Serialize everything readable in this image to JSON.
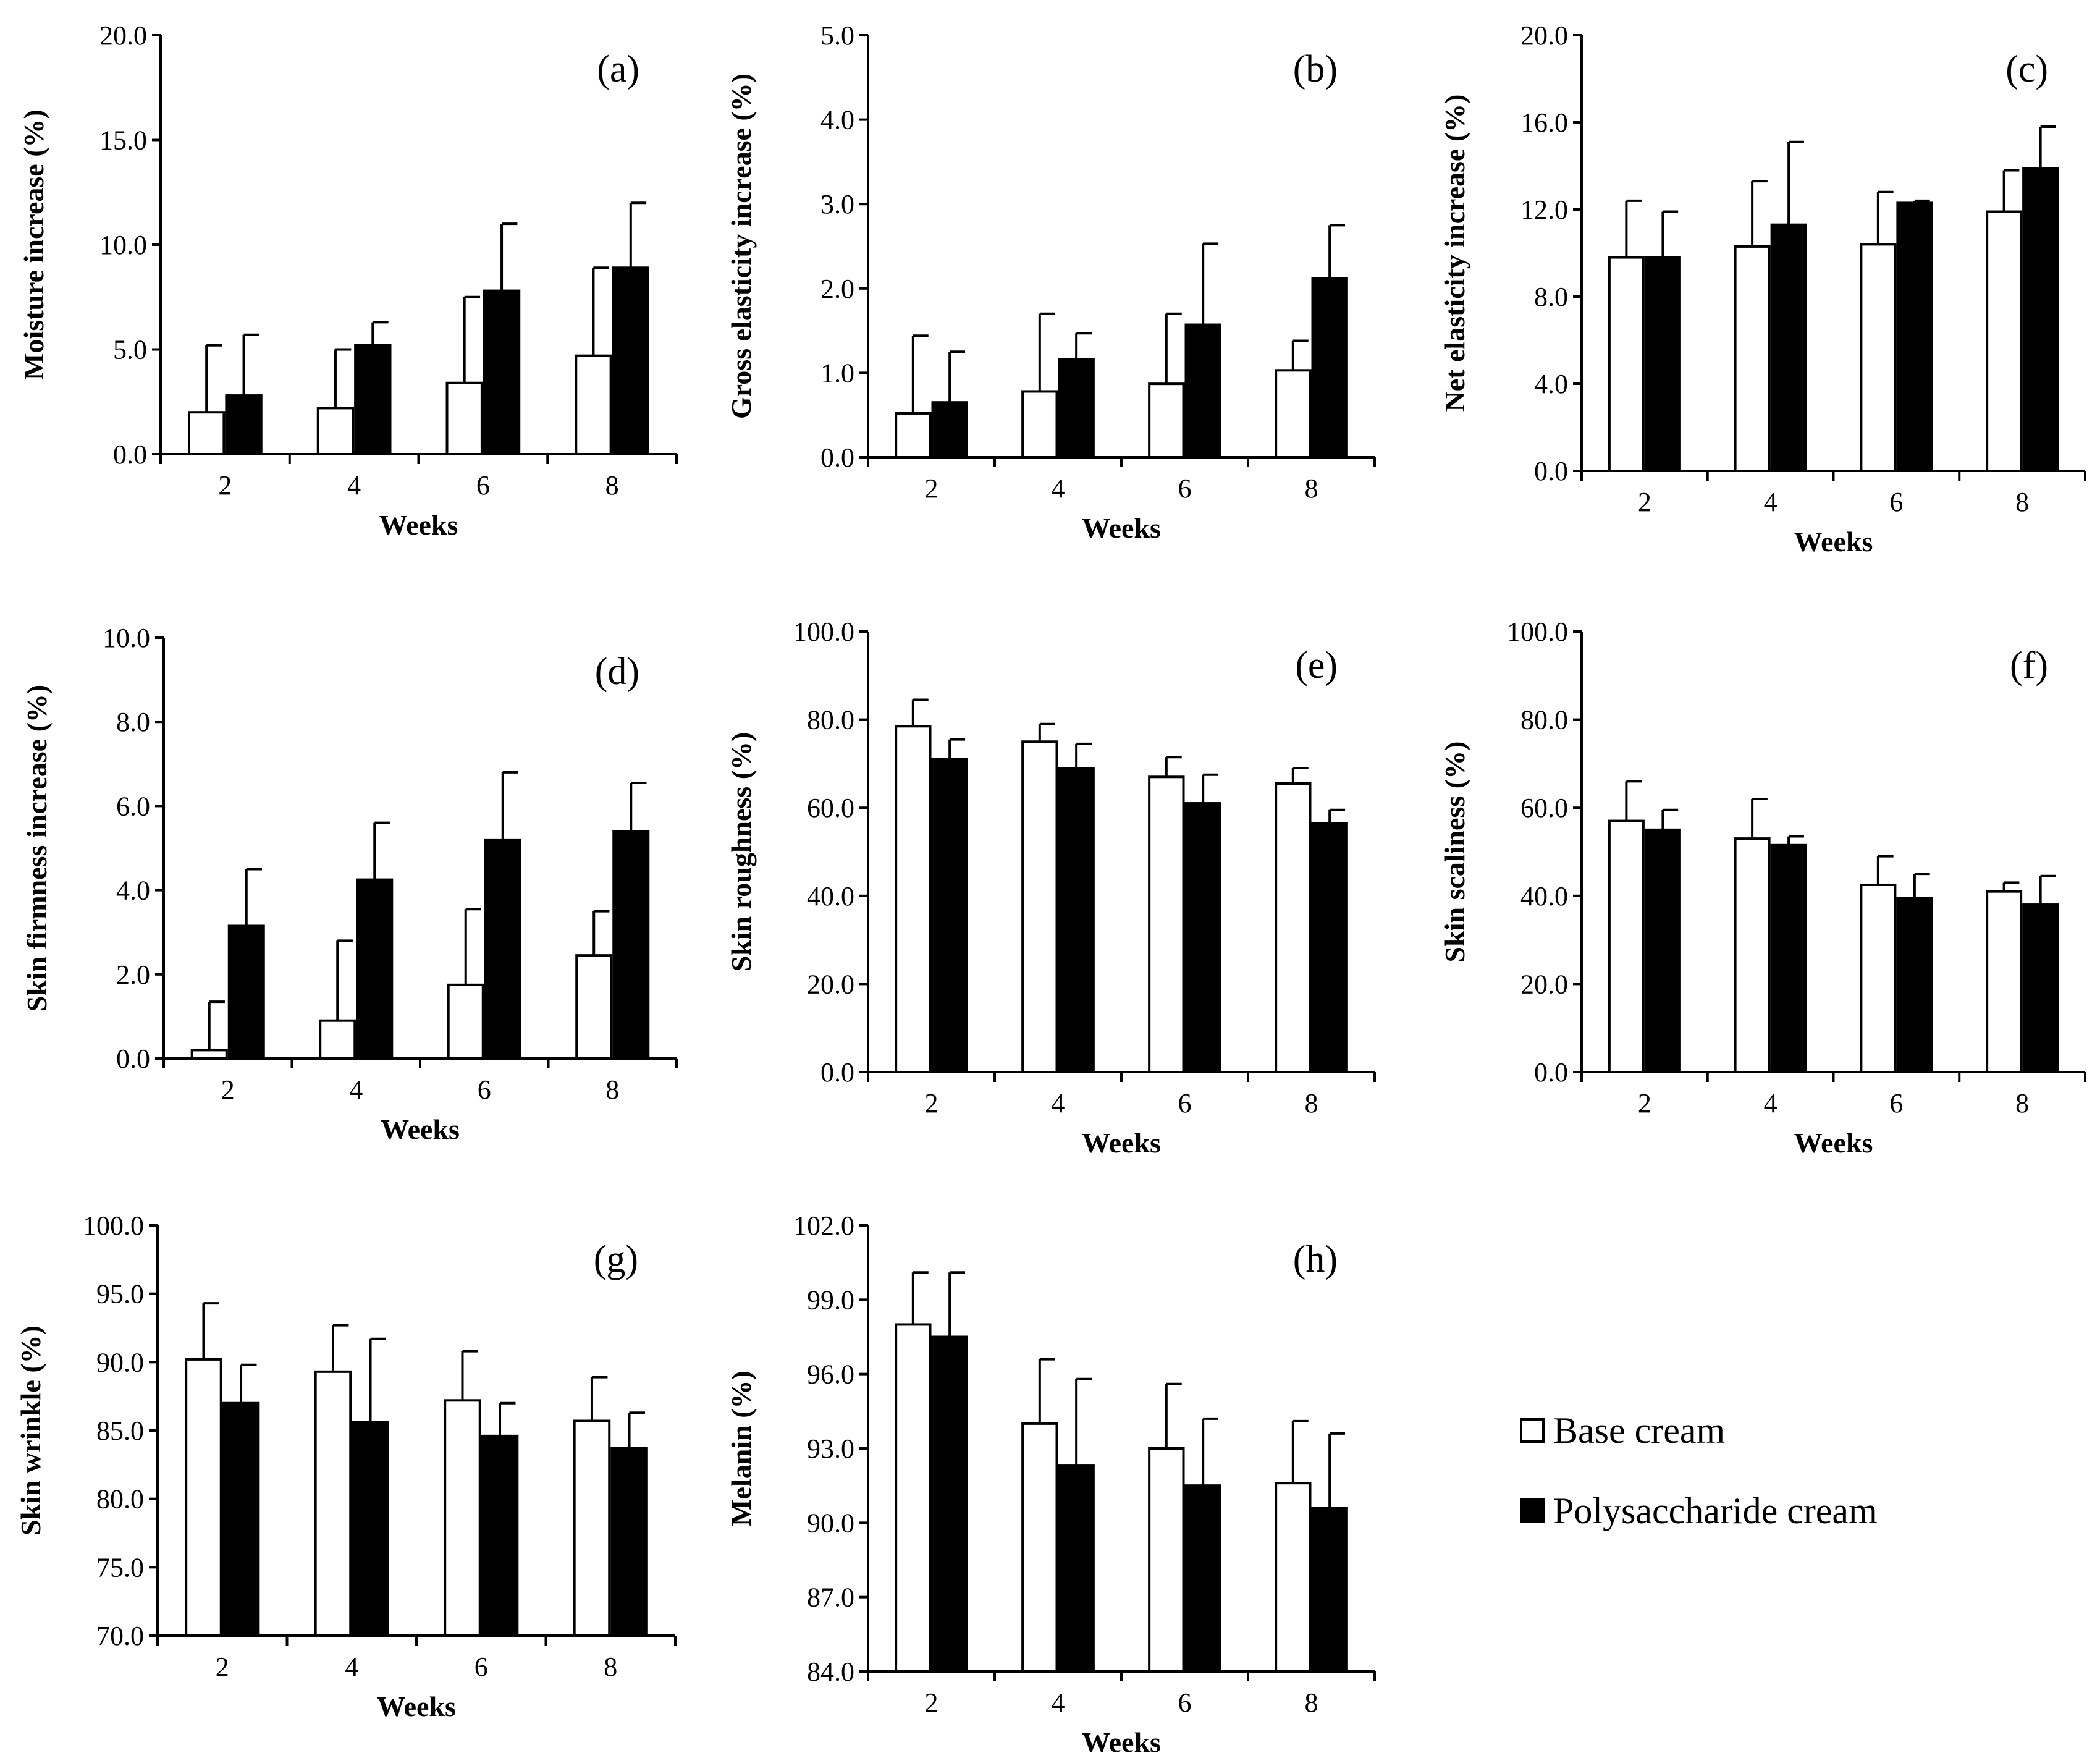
{
  "colors": {
    "base": "#ffffff",
    "poly": "#000000",
    "stroke": "#000000"
  },
  "legend": {
    "base_label": "Base cream",
    "poly_label": "Polysaccharide cream"
  },
  "chart_data": [
    {
      "id": "a",
      "type": "bar",
      "panel_label": "(a)",
      "xlabel": "Weeks",
      "ylabel": "Moisture increase (%)",
      "categories": [
        "2",
        "4",
        "6",
        "8"
      ],
      "ylim": [
        0,
        20
      ],
      "yticks": [
        "0.0",
        "5.0",
        "10.0",
        "15.0",
        "20.0"
      ],
      "series": [
        {
          "name": "Base cream",
          "values": [
            2.0,
            2.2,
            3.4,
            4.7
          ],
          "errors": [
            3.2,
            2.8,
            4.1,
            4.2
          ]
        },
        {
          "name": "Polysaccharide cream",
          "values": [
            2.8,
            5.2,
            7.8,
            8.9
          ],
          "errors": [
            2.9,
            1.1,
            3.2,
            3.1
          ]
        }
      ]
    },
    {
      "id": "b",
      "type": "bar",
      "panel_label": "(b)",
      "xlabel": "Weeks",
      "ylabel": "Gross elasticity increase (%)",
      "categories": [
        "2",
        "4",
        "6",
        "8"
      ],
      "ylim": [
        0,
        5
      ],
      "yticks": [
        "0.0",
        "1.0",
        "2.0",
        "3.0",
        "4.0",
        "5.0"
      ],
      "series": [
        {
          "name": "Base cream",
          "values": [
            0.52,
            0.78,
            0.87,
            1.03
          ],
          "errors": [
            0.92,
            0.92,
            0.83,
            0.35
          ]
        },
        {
          "name": "Polysaccharide cream",
          "values": [
            0.65,
            1.16,
            1.57,
            2.12
          ],
          "errors": [
            0.6,
            0.31,
            0.96,
            0.63
          ]
        }
      ]
    },
    {
      "id": "c",
      "type": "bar",
      "panel_label": "(c)",
      "xlabel": "Weeks",
      "ylabel": "Net elasticity increase (%)",
      "categories": [
        "2",
        "4",
        "6",
        "8"
      ],
      "ylim": [
        0,
        20
      ],
      "yticks": [
        "0.0",
        "4.0",
        "8.0",
        "12.0",
        "16.0",
        "20.0"
      ],
      "series": [
        {
          "name": "Base cream",
          "values": [
            9.8,
            10.3,
            10.4,
            11.9
          ],
          "errors": [
            2.6,
            3.0,
            2.4,
            1.9
          ]
        },
        {
          "name": "Polysaccharide cream",
          "values": [
            9.8,
            11.3,
            12.3,
            13.9
          ],
          "errors": [
            2.1,
            3.8,
            0.1,
            1.9
          ]
        }
      ]
    },
    {
      "id": "d",
      "type": "bar",
      "panel_label": "(d)",
      "xlabel": "Weeks",
      "ylabel": "Skin firmness increase (%)",
      "categories": [
        "2",
        "4",
        "6",
        "8"
      ],
      "ylim": [
        0,
        10
      ],
      "yticks": [
        "0.0",
        "2.0",
        "4.0",
        "6.0",
        "8.0",
        "10.0"
      ],
      "series": [
        {
          "name": "Base cream",
          "values": [
            0.2,
            0.9,
            1.75,
            2.45
          ],
          "errors": [
            1.15,
            1.9,
            1.8,
            1.05
          ]
        },
        {
          "name": "Polysaccharide cream",
          "values": [
            3.15,
            4.25,
            5.2,
            5.4
          ],
          "errors": [
            1.35,
            1.35,
            1.6,
            1.15
          ]
        }
      ]
    },
    {
      "id": "e",
      "type": "bar",
      "panel_label": "(e)",
      "xlabel": "Weeks",
      "ylabel": "Skin roughness (%)",
      "categories": [
        "2",
        "4",
        "6",
        "8"
      ],
      "ylim": [
        0,
        100
      ],
      "yticks": [
        "0.0",
        "20.0",
        "40.0",
        "60.0",
        "80.0",
        "100.0"
      ],
      "series": [
        {
          "name": "Base cream",
          "values": [
            78.5,
            75.0,
            67.0,
            65.5
          ],
          "errors": [
            6.0,
            4.0,
            4.5,
            3.5
          ]
        },
        {
          "name": "Polysaccharide cream",
          "values": [
            71.0,
            69.0,
            61.0,
            56.5
          ],
          "errors": [
            4.5,
            5.5,
            6.5,
            3.0
          ]
        }
      ]
    },
    {
      "id": "f",
      "type": "bar",
      "panel_label": "(f)",
      "xlabel": "Weeks",
      "ylabel": "Skin scaliness (%)",
      "categories": [
        "2",
        "4",
        "6",
        "8"
      ],
      "ylim": [
        0,
        100
      ],
      "yticks": [
        "0.0",
        "20.0",
        "40.0",
        "60.0",
        "80.0",
        "100.0"
      ],
      "series": [
        {
          "name": "Base cream",
          "values": [
            57.0,
            53.0,
            42.5,
            41.0
          ],
          "errors": [
            9.0,
            9.0,
            6.5,
            2.0
          ]
        },
        {
          "name": "Polysaccharide cream",
          "values": [
            55.0,
            51.5,
            39.5,
            38.0
          ],
          "errors": [
            4.5,
            2.0,
            5.5,
            6.5
          ]
        }
      ]
    },
    {
      "id": "g",
      "type": "bar",
      "panel_label": "(g)",
      "xlabel": "Weeks",
      "ylabel": "Skin wrinkle (%)",
      "categories": [
        "2",
        "4",
        "6",
        "8"
      ],
      "ylim": [
        70,
        100
      ],
      "yticks": [
        "70.0",
        "75.0",
        "80.0",
        "85.0",
        "90.0",
        "95.0",
        "100.0"
      ],
      "series": [
        {
          "name": "Base cream",
          "values": [
            90.2,
            89.3,
            87.2,
            85.7
          ],
          "errors": [
            4.1,
            3.4,
            3.6,
            3.2
          ]
        },
        {
          "name": "Polysaccharide cream",
          "values": [
            87.0,
            85.6,
            84.6,
            83.7
          ],
          "errors": [
            2.8,
            6.1,
            2.4,
            2.6
          ]
        }
      ]
    },
    {
      "id": "h",
      "type": "bar",
      "panel_label": "(h)",
      "xlabel": "Weeks",
      "ylabel": "Melanin (%)",
      "categories": [
        "2",
        "4",
        "6",
        "8"
      ],
      "ylim": [
        84,
        102
      ],
      "yticks": [
        "84.0",
        "87.0",
        "90.0",
        "93.0",
        "96.0",
        "99.0",
        "102.0"
      ],
      "series": [
        {
          "name": "Base cream",
          "values": [
            98.0,
            94.0,
            93.0,
            91.6
          ],
          "errors": [
            2.1,
            2.6,
            2.6,
            2.5
          ]
        },
        {
          "name": "Polysaccharide cream",
          "values": [
            97.5,
            92.3,
            91.5,
            90.6
          ],
          "errors": [
            2.6,
            3.5,
            2.7,
            3.0
          ]
        }
      ]
    }
  ]
}
